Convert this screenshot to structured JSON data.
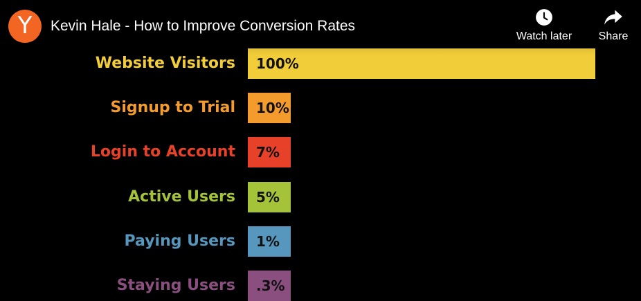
{
  "player": {
    "channel_initial": "Y",
    "title": "Kevin Hale - How to Improve Conversion Rates",
    "actions": {
      "watch_later": "Watch later",
      "share": "Share"
    }
  },
  "chart_data": {
    "type": "bar",
    "orientation": "horizontal",
    "categories": [
      "Website Visitors",
      "Signup to Trial",
      "Login to Account",
      "Active Users",
      "Paying Users",
      "Staying Users"
    ],
    "values": [
      100,
      10,
      7,
      5,
      1,
      0.3
    ],
    "value_labels": [
      "100%",
      "10%",
      "7%",
      "5%",
      "1%",
      ".3%"
    ],
    "colors": [
      "#f2cd3a",
      "#f39c2d",
      "#e8412a",
      "#a5c339",
      "#5796bd",
      "#8a4f7f"
    ],
    "label_colors": [
      "#f2cd3a",
      "#f39c2d",
      "#e8412a",
      "#a5c339",
      "#5796bd",
      "#8a4f7f"
    ]
  }
}
